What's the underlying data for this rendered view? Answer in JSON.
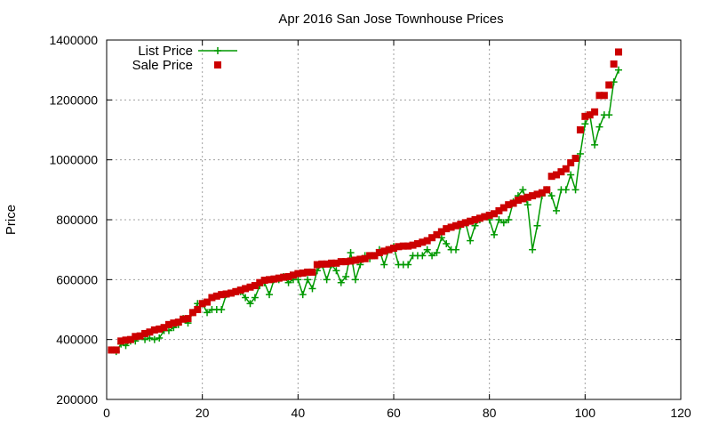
{
  "chart_data": {
    "type": "scatter",
    "title": "Apr 2016 San Jose Townhouse Prices",
    "xlabel": "",
    "ylabel": "Price",
    "xlim": [
      0,
      120
    ],
    "ylim": [
      200000,
      1400000
    ],
    "xticks": [
      0,
      20,
      40,
      60,
      80,
      100,
      120
    ],
    "yticks": [
      200000,
      400000,
      600000,
      800000,
      1000000,
      1200000,
      1400000
    ],
    "grid": true,
    "legend_position": "top-left",
    "series": [
      {
        "name": "List Price",
        "style": "line+cross",
        "color": "#009900",
        "x": [
          1,
          2,
          3,
          4,
          5,
          6,
          7,
          8,
          9,
          10,
          11,
          12,
          13,
          14,
          15,
          16,
          17,
          18,
          19,
          20,
          21,
          22,
          23,
          24,
          25,
          26,
          27,
          28,
          29,
          30,
          31,
          32,
          33,
          34,
          35,
          36,
          37,
          38,
          39,
          40,
          41,
          42,
          43,
          44,
          45,
          46,
          47,
          48,
          49,
          50,
          51,
          52,
          53,
          54,
          55,
          56,
          57,
          58,
          59,
          60,
          61,
          62,
          63,
          64,
          65,
          66,
          67,
          68,
          69,
          70,
          71,
          72,
          73,
          74,
          75,
          76,
          77,
          78,
          79,
          80,
          81,
          82,
          83,
          84,
          85,
          86,
          87,
          88,
          89,
          90,
          91,
          92,
          93,
          94,
          95,
          96,
          97,
          98,
          99,
          100,
          101,
          102,
          103,
          104,
          105,
          106,
          107
        ],
        "y": [
          365000,
          360000,
          385000,
          380000,
          395000,
          395000,
          410000,
          400000,
          405000,
          400000,
          405000,
          430000,
          430000,
          440000,
          450000,
          470000,
          455000,
          490000,
          520000,
          520000,
          490000,
          500000,
          500000,
          500000,
          550000,
          555000,
          560000,
          560000,
          540000,
          520000,
          540000,
          580000,
          590000,
          550000,
          600000,
          600000,
          610000,
          590000,
          600000,
          600000,
          550000,
          600000,
          570000,
          630000,
          650000,
          600000,
          650000,
          630000,
          590000,
          610000,
          690000,
          600000,
          650000,
          680000,
          670000,
          680000,
          700000,
          650000,
          700000,
          710000,
          650000,
          650000,
          650000,
          680000,
          680000,
          680000,
          700000,
          680000,
          690000,
          740000,
          720000,
          700000,
          700000,
          780000,
          790000,
          730000,
          780000,
          800000,
          810000,
          800000,
          750000,
          800000,
          790000,
          800000,
          860000,
          880000,
          900000,
          850000,
          700000,
          780000,
          880000,
          900000,
          880000,
          830000,
          900000,
          900000,
          950000,
          900000,
          1020000,
          1120000,
          1150000,
          1050000,
          1110000,
          1150000,
          1150000,
          1260000,
          1300000
        ]
      },
      {
        "name": "Sale Price",
        "style": "square",
        "color": "#cc0000",
        "x": [
          1,
          2,
          3,
          4,
          5,
          6,
          7,
          8,
          9,
          10,
          11,
          12,
          13,
          14,
          15,
          16,
          17,
          18,
          19,
          20,
          21,
          22,
          23,
          24,
          25,
          26,
          27,
          28,
          29,
          30,
          31,
          32,
          33,
          34,
          35,
          36,
          37,
          38,
          39,
          40,
          41,
          42,
          43,
          44,
          45,
          46,
          47,
          48,
          49,
          50,
          51,
          52,
          53,
          54,
          55,
          56,
          57,
          58,
          59,
          60,
          61,
          62,
          63,
          64,
          65,
          66,
          67,
          68,
          69,
          70,
          71,
          72,
          73,
          74,
          75,
          76,
          77,
          78,
          79,
          80,
          81,
          82,
          83,
          84,
          85,
          86,
          87,
          88,
          89,
          90,
          91,
          92,
          93,
          94,
          95,
          96,
          97,
          98,
          99,
          100,
          101,
          102,
          103,
          104,
          105,
          106,
          107
        ],
        "y": [
          365000,
          365000,
          395000,
          398000,
          400000,
          410000,
          412000,
          420000,
          425000,
          432000,
          435000,
          440000,
          450000,
          455000,
          458000,
          468000,
          470000,
          490000,
          500000,
          520000,
          525000,
          540000,
          545000,
          550000,
          552000,
          555000,
          560000,
          565000,
          570000,
          575000,
          580000,
          590000,
          598000,
          600000,
          602000,
          605000,
          608000,
          610000,
          615000,
          620000,
          622000,
          625000,
          625000,
          650000,
          652000,
          652000,
          655000,
          655000,
          660000,
          660000,
          662000,
          665000,
          668000,
          670000,
          680000,
          680000,
          690000,
          695000,
          700000,
          705000,
          710000,
          712000,
          712000,
          715000,
          720000,
          725000,
          730000,
          740000,
          750000,
          760000,
          770000,
          775000,
          780000,
          785000,
          790000,
          795000,
          800000,
          805000,
          810000,
          815000,
          820000,
          830000,
          840000,
          850000,
          855000,
          865000,
          870000,
          875000,
          880000,
          885000,
          890000,
          900000,
          945000,
          950000,
          960000,
          970000,
          990000,
          1005000,
          1100000,
          1145000,
          1150000,
          1160000,
          1215000,
          1215000,
          1250000,
          1320000,
          1360000
        ]
      }
    ]
  }
}
